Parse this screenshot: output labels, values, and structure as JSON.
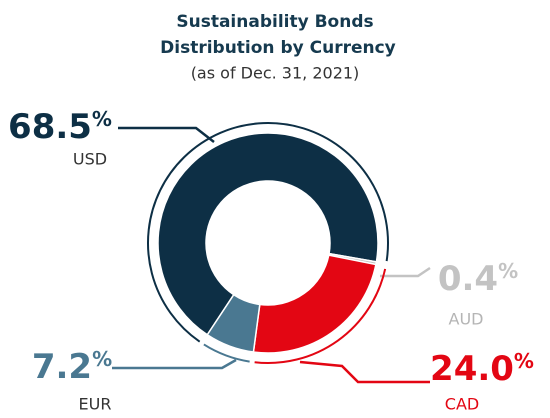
{
  "chart_data": {
    "type": "donut",
    "title": "Sustainability Bonds Distribution by Currency",
    "subtitle": "(as of Dec. 31, 2021)",
    "categories": [
      "USD",
      "AUD",
      "CAD",
      "EUR"
    ],
    "values": [
      68.5,
      0.4,
      24.0,
      7.2
    ],
    "value_labels": [
      "68.5%",
      "0.4%",
      "24.0%",
      "7.2%"
    ],
    "colors": [
      "#0d2f45",
      "#c3c3c3",
      "#e30613",
      "#4a7891"
    ]
  }
}
